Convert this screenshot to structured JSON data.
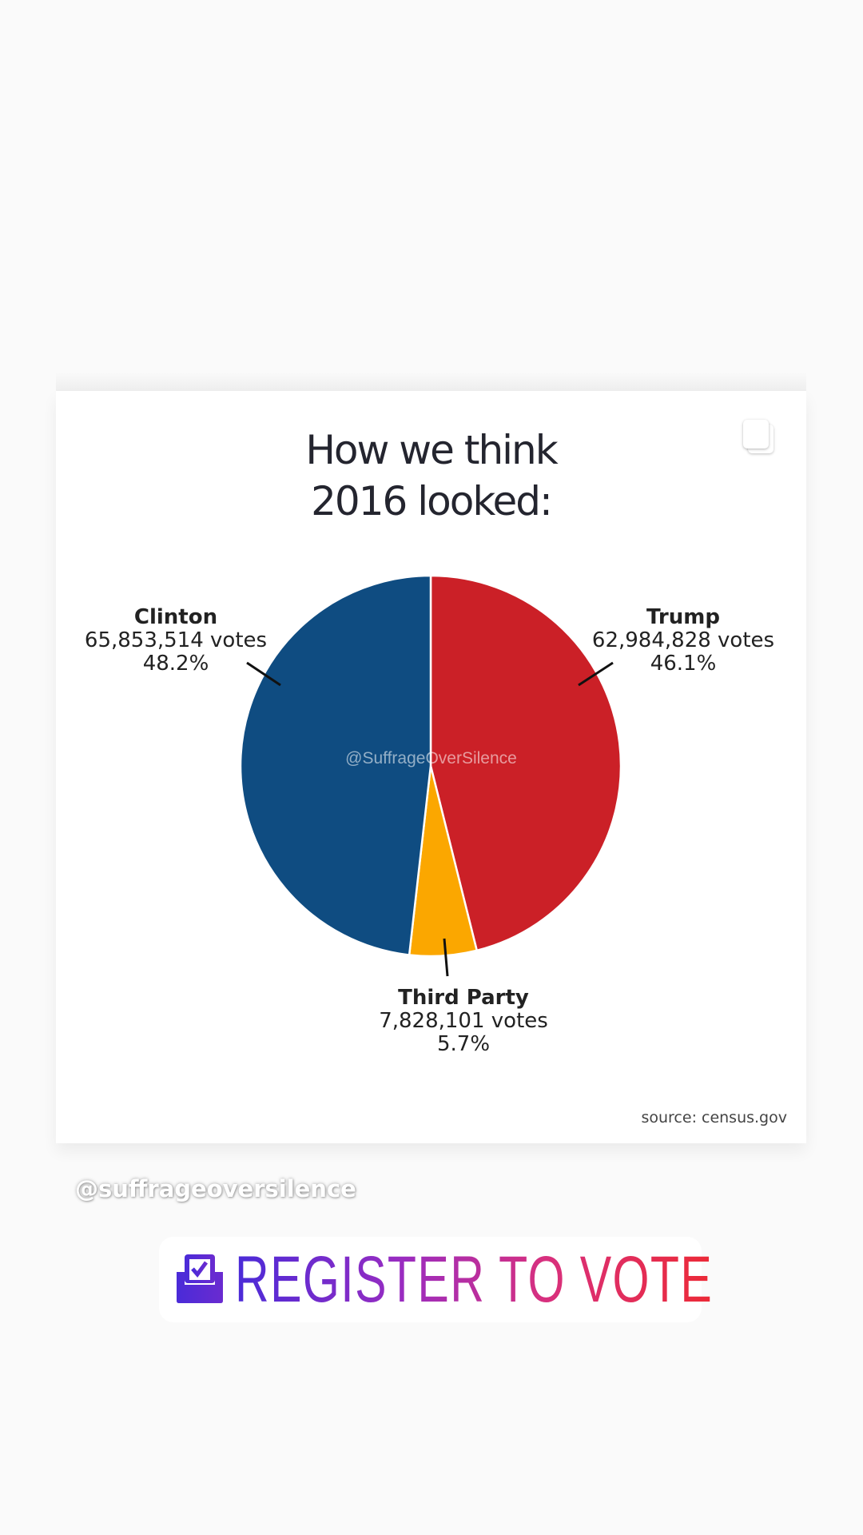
{
  "post": {
    "title_line1": "How we think",
    "title_line2": "2016 looked:",
    "watermark": "@SuffrageOverSilence",
    "source": "source: census.gov"
  },
  "chart_data": {
    "type": "pie",
    "title": "How we think 2016 looked:",
    "start_angle_deg": 0,
    "direction": "clockwise",
    "slices": [
      {
        "name": "Trump",
        "votes_label": "62,984,828 votes",
        "votes": 62984828,
        "percent_label": "46.1%",
        "percent": 46.1,
        "color": "#cb2027"
      },
      {
        "name": "Third Party",
        "votes_label": "7,828,101 votes",
        "votes": 7828101,
        "percent_label": "5.7%",
        "percent": 5.7,
        "color": "#fba700"
      },
      {
        "name": "Clinton",
        "votes_label": "65,853,514 votes",
        "votes": 65853514,
        "percent_label": "48.2%",
        "percent": 48.2,
        "color": "#0f4c81"
      }
    ]
  },
  "story": {
    "handle": "@suffrageoversilence",
    "sticker_label": "REGISTER TO VOTE",
    "sticker_icon": "ballot-check-icon"
  }
}
